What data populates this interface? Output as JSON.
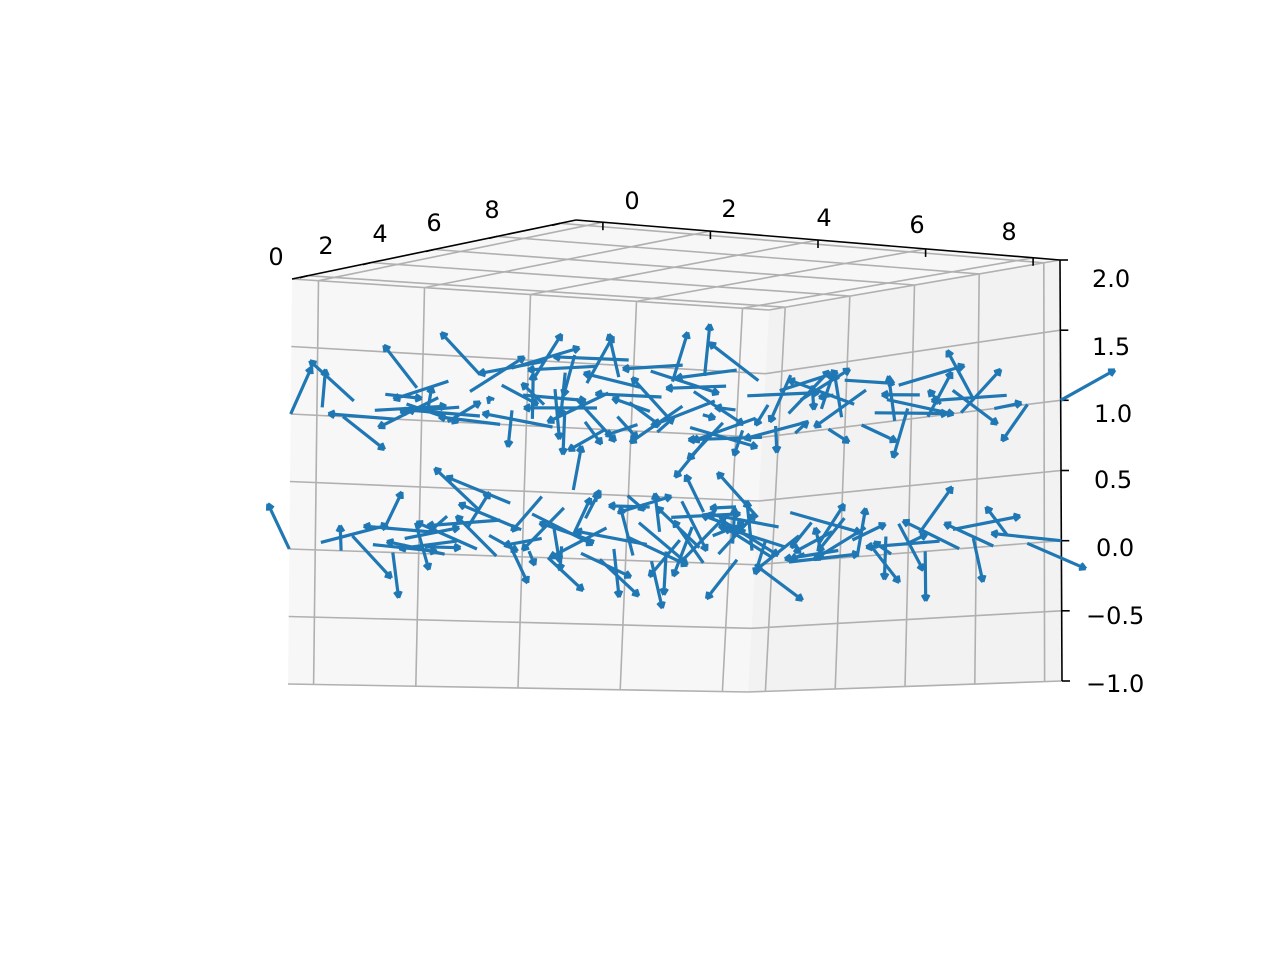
{
  "chart_data": {
    "type": "quiver3d",
    "title": "",
    "xlabel": "",
    "ylabel": "",
    "zlabel": "",
    "grid": true,
    "arrow_color": "#1f77b4",
    "pane_colors": {
      "left": "#f7f7f7",
      "right": "#f2f2f2",
      "floor": "#f7f7f7"
    },
    "x_ticks": [
      "0",
      "2",
      "4",
      "6",
      "8"
    ],
    "y_ticks": [
      "0",
      "2",
      "4",
      "6",
      "8"
    ],
    "z_ticks": [
      "2.0",
      "1.5",
      "1.0",
      "0.5",
      "0.0",
      "−0.5",
      "−1.0"
    ],
    "xlim": [
      0,
      9
    ],
    "ylim": [
      0,
      9
    ],
    "zlim": [
      -1.0,
      2.0
    ],
    "layers": [
      {
        "z": 1.0,
        "x_range": [
          0,
          9
        ],
        "y_range": [
          0,
          9
        ],
        "grid_count": 10,
        "arrow_length": 0.25
      },
      {
        "z": 0.0,
        "x_range": [
          0,
          9
        ],
        "y_range": [
          0,
          9
        ],
        "grid_count": 10,
        "arrow_length": 0.25
      }
    ]
  }
}
